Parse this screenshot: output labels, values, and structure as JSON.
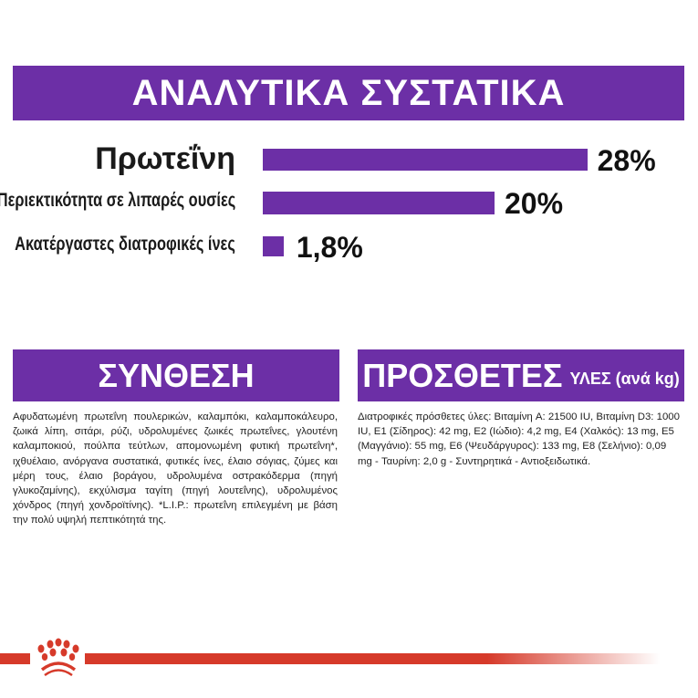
{
  "analysis": {
    "title": "ΑΝΑΛΥΤΙΚΑ ΣΥΣΤΑΤΙΚΑ",
    "rows": [
      {
        "label": "Πρωτεΐνη",
        "value": "28%",
        "percent": 28
      },
      {
        "label": "Περιεκτικότητα σε λιπαρές ουσίες",
        "value": "20%",
        "percent": 20
      },
      {
        "label": "Ακατέργαστες διατροφικές ίνες",
        "value": "1,8%",
        "percent": 1.8
      }
    ]
  },
  "composition": {
    "title": "ΣΥΝΘΕΣΗ",
    "text": "Αφυδατωμένη πρωτεΐνη πουλερικών, καλαμπόκι, καλαμποκάλευρο, ζωικά λίπη, σιτάρι, ρύζι, υδρολυμένες ζωικές πρωτεΐνες, γλουτένη καλαμποκιού, πούλπα τεύτλων, απομονωμένη φυτική πρωτεΐνη*, ιχθυέλαιο, ανόργανα συστατικά, φυτικές ίνες, έλαιο σόγιας, ζύμες και μέρη τους, έλαιο βοράγου, υδρολυμένα οστρακόδερμα (πηγή γλυκοζαμίνης), εκχύλισμα ταγίτη (πηγή λουτεΐνης), υδρολυμένος χόνδρος (πηγή χονδροϊτίνης). *L.I.P.: πρωτεΐνη επιλεγμένη με βάση την πολύ υψηλή πεπτικότητά της."
  },
  "additives": {
    "title": "ΠΡΟΣΘΕΤΕΣ",
    "title_suffix": "ΥΛΕΣ (ανά kg)",
    "text": "Διατροφικές πρόσθετες ύλες: Βιταμίνη A: 21500 IU, Βιταμίνη D3: 1000 IU, E1 (Σίδηρος): 42 mg, E2 (Ιώδιο): 4,2 mg, E4 (Χαλκός): 13 mg, E5 (Μαγγάνιο): 55 mg, E6 (Ψευδάργυρος): 133 mg, E8 (Σελήνιο): 0,09 mg - Ταυρίνη: 2,0 g - Συντηρητικά - Αντιοξειδωτικά."
  },
  "footer": {
    "logo": "royal-canin-crown-icon"
  },
  "colors": {
    "accent": "#6c2fa6",
    "brand_red": "#d63a2a"
  }
}
